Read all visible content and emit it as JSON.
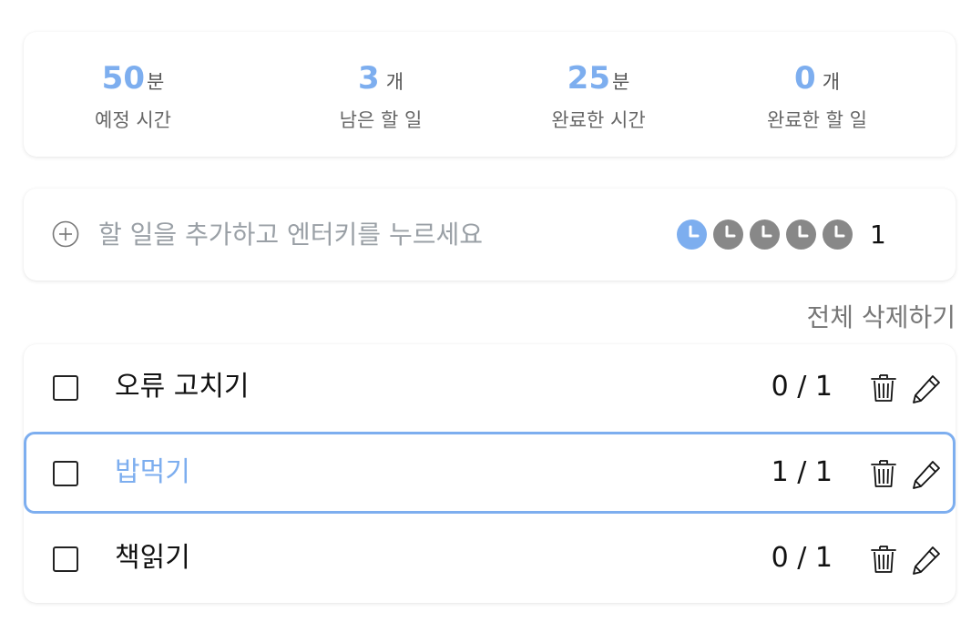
{
  "stats": [
    {
      "value": "50",
      "unit": "분",
      "label": "예정 시간"
    },
    {
      "value": "3",
      "unit": "개",
      "label": "남은 할 일"
    },
    {
      "value": "25",
      "unit": "분",
      "label": "완료한 시간"
    },
    {
      "value": "0",
      "unit": "개",
      "label": "완료한 할 일"
    }
  ],
  "add": {
    "placeholder": "할 일을 추가하고 엔터키를 누르세요",
    "icon": "plus-circle-icon",
    "pomodoro_icons": [
      "clock-icon",
      "clock-icon",
      "clock-icon",
      "clock-icon",
      "clock-icon"
    ],
    "pomodoro_selected": 1,
    "pomodoro_count": "1"
  },
  "clear_all_label": "전체 삭제하기",
  "tasks": [
    {
      "title": "오류 고치기",
      "count": "0 / 1",
      "checked": false,
      "selected": false
    },
    {
      "title": "밥먹기",
      "count": "1 / 1",
      "checked": false,
      "selected": true
    },
    {
      "title": "책읽기",
      "count": "0 / 1",
      "checked": false,
      "selected": false
    }
  ],
  "colors": {
    "accent": "#7daeef",
    "pomodoro_inactive": "#888888",
    "text": "#111111",
    "muted": "#777777"
  }
}
